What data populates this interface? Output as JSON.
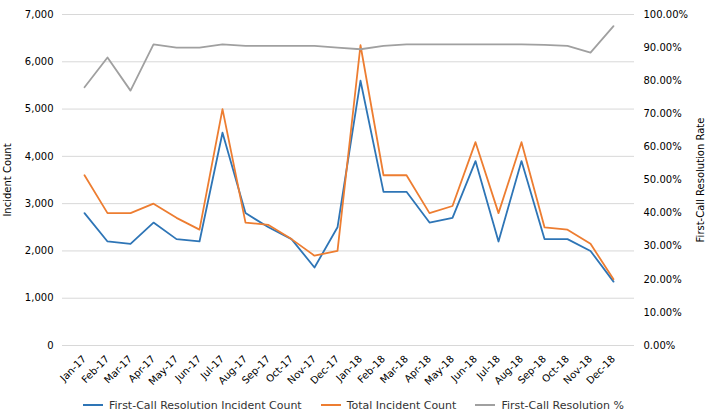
{
  "chart_data": {
    "type": "line",
    "categories": [
      "Jan-17",
      "Feb-17",
      "Mar-17",
      "Apr-17",
      "May-17",
      "Jun-17",
      "Jul-17",
      "Aug-17",
      "Sep-17",
      "Oct-17",
      "Nov-17",
      "Dec-17",
      "Jan-18",
      "Feb-18",
      "Mar-18",
      "Apr-18",
      "May-18",
      "Jun-18",
      "Jul-18",
      "Aug-18",
      "Sep-18",
      "Oct-18",
      "Nov-18",
      "Dec-18"
    ],
    "series": [
      {
        "name": "First-Call Resolution Incident Count",
        "color": "#2E75B6",
        "values": [
          2800,
          2200,
          2150,
          2600,
          2250,
          2200,
          4500,
          2800,
          2500,
          2250,
          1650,
          2500,
          5600,
          3250,
          3250,
          2600,
          2700,
          3900,
          2200,
          3900,
          2250,
          2250,
          2000,
          1350
        ]
      },
      {
        "name": "Total Incident Count",
        "color": "#ED7D31",
        "values": [
          3600,
          2800,
          2800,
          3000,
          2700,
          2450,
          5000,
          2600,
          2550,
          2250,
          1900,
          2000,
          6350,
          3600,
          3600,
          2800,
          2950,
          4300,
          2800,
          4300,
          2500,
          2450,
          2150,
          1400
        ]
      },
      {
        "name": "First-Call Resolution %",
        "color": "#A0A0A0",
        "axis": "y2",
        "values": [
          0.78,
          0.87,
          0.77,
          0.91,
          0.9,
          0.9,
          0.91,
          0.905,
          0.905,
          0.905,
          0.905,
          0.9,
          0.895,
          0.905,
          0.91,
          0.91,
          0.91,
          0.91,
          0.91,
          0.91,
          0.908,
          0.905,
          0.885,
          0.965
        ]
      }
    ],
    "ylabel": "Incident Count",
    "y2label": "First-Call Resolution Rate",
    "ylim": [
      0,
      7000
    ],
    "yticks": [
      0,
      {
        "value": 1000,
        "label": "1,000"
      },
      {
        "value": 2000,
        "label": "2,000"
      },
      {
        "value": 3000,
        "label": "3,000"
      },
      {
        "value": 4000,
        "label": "4,000"
      },
      {
        "value": 5000,
        "label": "5,000"
      },
      {
        "value": 6000,
        "label": "6,000"
      },
      {
        "value": 7000,
        "label": "7,000"
      }
    ],
    "y2lim": [
      0.0,
      1.0
    ],
    "y2ticks": [
      {
        "value": 0.0,
        "label": "0.00%"
      },
      {
        "value": 0.1,
        "label": "10.00%"
      },
      {
        "value": 0.2,
        "label": "20.00%"
      },
      {
        "value": 0.3,
        "label": "30.00%"
      },
      {
        "value": 0.4,
        "label": "40.00%"
      },
      {
        "value": 0.5,
        "label": "50.00%"
      },
      {
        "value": 0.6,
        "label": "60.00%"
      },
      {
        "value": 0.7,
        "label": "70.00%"
      },
      {
        "value": 0.8,
        "label": "80.00%"
      },
      {
        "value": 0.9,
        "label": "90.00%"
      },
      {
        "value": 1.0,
        "label": "100.00%"
      }
    ],
    "grid": true,
    "legend": "bottom"
  }
}
